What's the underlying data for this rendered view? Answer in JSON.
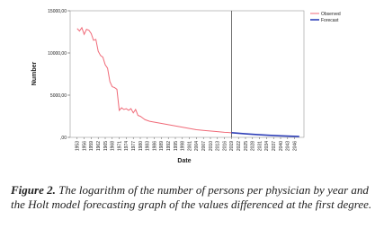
{
  "chart_data": {
    "type": "line",
    "x_label": "Date",
    "y_label": "Number",
    "xlim": [
      1950,
      2050
    ],
    "xticks": [
      1953,
      1956,
      1959,
      1962,
      1965,
      1968,
      1971,
      1974,
      1977,
      1980,
      1983,
      1986,
      1989,
      1992,
      1995,
      1998,
      2001,
      2004,
      2007,
      2010,
      2013,
      2016,
      2019,
      2022,
      2025,
      2028,
      2031,
      2034,
      2037,
      2040,
      2043,
      2046
    ],
    "ylim": [
      0,
      15000
    ],
    "yticks": [
      {
        "value": 0,
        "label": ",00"
      },
      {
        "value": 5000,
        "label": "5000,00"
      },
      {
        "value": 10000,
        "label": "10000,00"
      },
      {
        "value": 15000,
        "label": "15000,00"
      }
    ],
    "reference_line_x": 2019,
    "legend": "top-right",
    "series": [
      {
        "name": "Observed",
        "color": "#f06a78",
        "x": [
          1953,
          1954,
          1955,
          1956,
          1957,
          1958,
          1959,
          1960,
          1961,
          1962,
          1963,
          1964,
          1965,
          1966,
          1967,
          1968,
          1969,
          1970,
          1971,
          1972,
          1973,
          1974,
          1975,
          1976,
          1977,
          1978,
          1979,
          1980,
          1981,
          1982,
          1984,
          1988,
          1992,
          1996,
          2000,
          2004,
          2008,
          2012,
          2016,
          2019
        ],
        "values": [
          12900,
          12600,
          13000,
          12200,
          12800,
          12700,
          12300,
          11500,
          11600,
          10200,
          9700,
          9500,
          8600,
          8200,
          6600,
          6000,
          5900,
          5700,
          3200,
          3500,
          3300,
          3400,
          3200,
          3400,
          2900,
          3300,
          2600,
          2500,
          2300,
          2100,
          1900,
          1700,
          1500,
          1300,
          1100,
          900,
          800,
          700,
          600,
          550
        ]
      },
      {
        "name": "Forecast",
        "color": "#2e3fb8",
        "x": [
          2019,
          2025,
          2030,
          2035,
          2040,
          2048
        ],
        "values": [
          550,
          420,
          330,
          250,
          180,
          100
        ]
      }
    ]
  },
  "caption_label": "Figure 2.",
  "caption": "The logarithm of the number of persons per physician by year and the Holt model forecasting graph of the values differenced at the first degree."
}
